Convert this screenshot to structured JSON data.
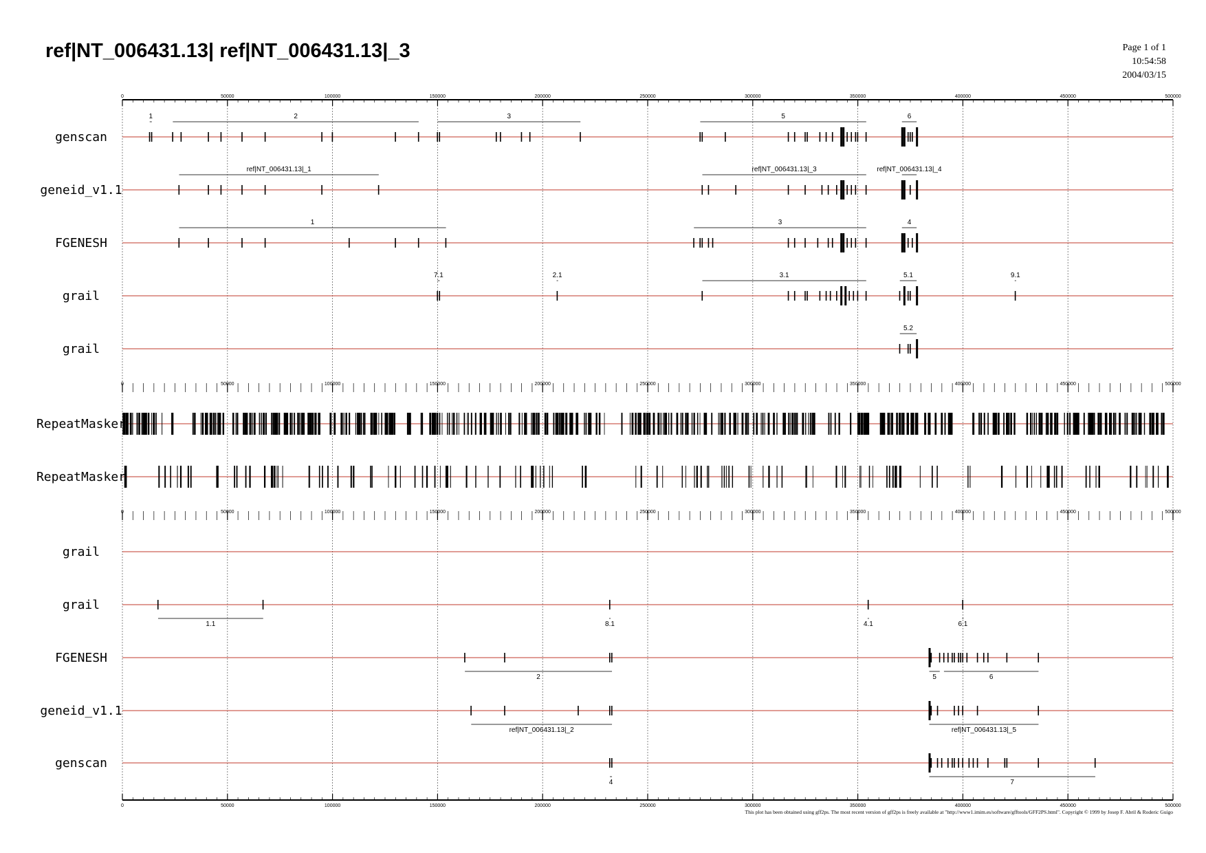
{
  "title": "ref|NT_006431.13| ref|NT_006431.13|_3",
  "page_info": {
    "page": "Page 1 of 1",
    "time": "10:54:58",
    "date": "2004/03/15"
  },
  "footer": "This plot has been obtained using gff2ps. The most recent version of gff2ps is freely available at \"http://www1.imim.es/software/gfftools/GFF2PS.html\". Copyright © 1999 by Josep F. Abril & Roderic Guigo",
  "colors": {
    "strand_line": "#c0392b",
    "feature": "#000000",
    "gene_line": "#333333",
    "grid": "#666666"
  },
  "chart_data": {
    "type": "gene-track-plot",
    "x_range": [
      0,
      500000
    ],
    "axis_ticks": [
      "0",
      "50000",
      "100000",
      "150000",
      "200000",
      "250000",
      "300000",
      "350000",
      "400000",
      "450000",
      "500000"
    ],
    "grid": true,
    "tracks": [
      {
        "label": "genscan",
        "strand": "+",
        "genes": [
          {
            "name": "1",
            "start": 13000,
            "end": 14000,
            "exons": [
              13000,
              14000
            ]
          },
          {
            "name": "2",
            "start": 24000,
            "end": 141000,
            "exons": [
              24000,
              28000,
              41000,
              47000,
              57000,
              68000,
              95000,
              100000,
              130000,
              141000
            ]
          },
          {
            "name": "3",
            "start": 150000,
            "end": 218000,
            "exons": [
              150000,
              151000,
              178000,
              180000,
              190000,
              194000,
              218000
            ]
          },
          {
            "name": "5",
            "start": 275000,
            "end": 354000,
            "exons": [
              275000,
              276000,
              287000,
              317000,
              320000,
              325000,
              326000,
              332000,
              335000,
              338000,
              342000,
              343000,
              345000,
              347000,
              349000,
              350000,
              354000
            ]
          },
          {
            "name": "6",
            "start": 371000,
            "end": 378000,
            "exons": [
              371000,
              372000,
              374000,
              375000,
              376000,
              378000
            ]
          }
        ]
      },
      {
        "label": "geneid_v1.1",
        "strand": "+",
        "genes": [
          {
            "name": "ref|NT_006431.13|_1",
            "start": 27000,
            "end": 122000,
            "exons": [
              27000,
              41000,
              47000,
              57000,
              68000,
              95000,
              122000
            ]
          },
          {
            "name": "ref|NT_006431.13|_3",
            "start": 276000,
            "end": 354000,
            "exons": [
              276000,
              279000,
              292000,
              317000,
              325000,
              333000,
              336000,
              340000,
              342000,
              343000,
              345000,
              347000,
              349000,
              354000
            ]
          },
          {
            "name": "ref|NT_006431.13|_4",
            "start": 371000,
            "end": 378000,
            "exons": [
              371000,
              372000,
              375000,
              378000
            ]
          }
        ]
      },
      {
        "label": "FGENESH",
        "strand": "+",
        "genes": [
          {
            "name": "1",
            "start": 27000,
            "end": 154000,
            "exons": [
              27000,
              41000,
              57000,
              68000,
              108000,
              130000,
              141000,
              154000
            ]
          },
          {
            "name": "3",
            "start": 272000,
            "end": 354000,
            "exons": [
              272000,
              275000,
              276000,
              279000,
              281000,
              317000,
              320000,
              325000,
              331000,
              336000,
              338000,
              342000,
              343000,
              345000,
              347000,
              349000,
              354000
            ]
          },
          {
            "name": "4",
            "start": 371000,
            "end": 378000,
            "exons": [
              371000,
              372000,
              374000,
              376000,
              378000
            ]
          }
        ]
      },
      {
        "label": "grail",
        "strand": "+",
        "genes": [
          {
            "name": "7.1",
            "start": 150000,
            "end": 151000,
            "exons": [
              150000,
              151000
            ]
          },
          {
            "name": "2.1",
            "start": 207000,
            "end": 207000,
            "exons": [
              207000
            ]
          },
          {
            "name": "3.1",
            "start": 276000,
            "end": 354000,
            "exons": [
              276000,
              317000,
              320000,
              325000,
              326000,
              332000,
              335000,
              337000,
              340000,
              342000,
              344000,
              346000,
              348000,
              350000,
              354000
            ]
          },
          {
            "name": "5.1",
            "start": 370000,
            "end": 378000,
            "exons": [
              370000,
              372000,
              374000,
              375000,
              378000
            ]
          },
          {
            "name": "9.1",
            "start": 425000,
            "end": 425000,
            "exons": [
              425000
            ]
          }
        ]
      },
      {
        "label": "grail",
        "strand": "+",
        "genes": [
          {
            "name": "5.2",
            "start": 370000,
            "end": 378000,
            "exons": [
              370000,
              374000,
              375000,
              378000
            ]
          }
        ]
      },
      {
        "label": "RepeatMasker",
        "strand": ".",
        "kind": "repeats",
        "density": "high"
      },
      {
        "label": "RepeatMasker",
        "strand": ".",
        "kind": "repeats",
        "density": "low"
      },
      {
        "label": "grail",
        "strand": "-",
        "genes": []
      },
      {
        "label": "grail",
        "strand": "-",
        "genes": [
          {
            "name": "1.1",
            "start": 17000,
            "end": 67000,
            "exons": [
              17000,
              67000
            ]
          },
          {
            "name": "8.1",
            "start": 232000,
            "end": 232000,
            "exons": [
              232000
            ]
          },
          {
            "name": "4.1",
            "start": 355000,
            "end": 355000,
            "exons": [
              355000
            ]
          },
          {
            "name": "6.1",
            "start": 400000,
            "end": 400000,
            "exons": [
              400000
            ]
          }
        ]
      },
      {
        "label": "FGENESH",
        "strand": "-",
        "genes": [
          {
            "name": "2",
            "start": 163000,
            "end": 233000,
            "exons": [
              163000,
              182000,
              232000,
              233000
            ]
          },
          {
            "name": "5",
            "start": 384000,
            "end": 389000,
            "exons": [
              384000,
              385000,
              389000
            ]
          },
          {
            "name": "6",
            "start": 391000,
            "end": 436000,
            "exons": [
              391000,
              393000,
              395000,
              396000,
              398000,
              399000,
              400000,
              402000,
              407000,
              410000,
              412000,
              421000,
              436000
            ]
          }
        ]
      },
      {
        "label": "geneid_v1.1",
        "strand": "-",
        "genes": [
          {
            "name": "ref|NT_006431.13|_2",
            "start": 166000,
            "end": 233000,
            "exons": [
              166000,
              182000,
              217000,
              232000,
              233000
            ]
          },
          {
            "name": "ref|NT_006431.13|_5",
            "start": 384000,
            "end": 436000,
            "exons": [
              384000,
              385000,
              388000,
              396000,
              398000,
              400000,
              407000,
              436000
            ]
          }
        ]
      },
      {
        "label": "genscan",
        "strand": "-",
        "genes": [
          {
            "name": "4",
            "start": 232000,
            "end": 233000,
            "exons": [
              232000,
              233000
            ]
          },
          {
            "name": "7",
            "start": 384000,
            "end": 463000,
            "exons": [
              384000,
              385000,
              388000,
              390000,
              393000,
              395000,
              396000,
              398000,
              400000,
              403000,
              405000,
              407000,
              412000,
              420000,
              421000,
              436000,
              463000
            ]
          }
        ]
      }
    ]
  }
}
